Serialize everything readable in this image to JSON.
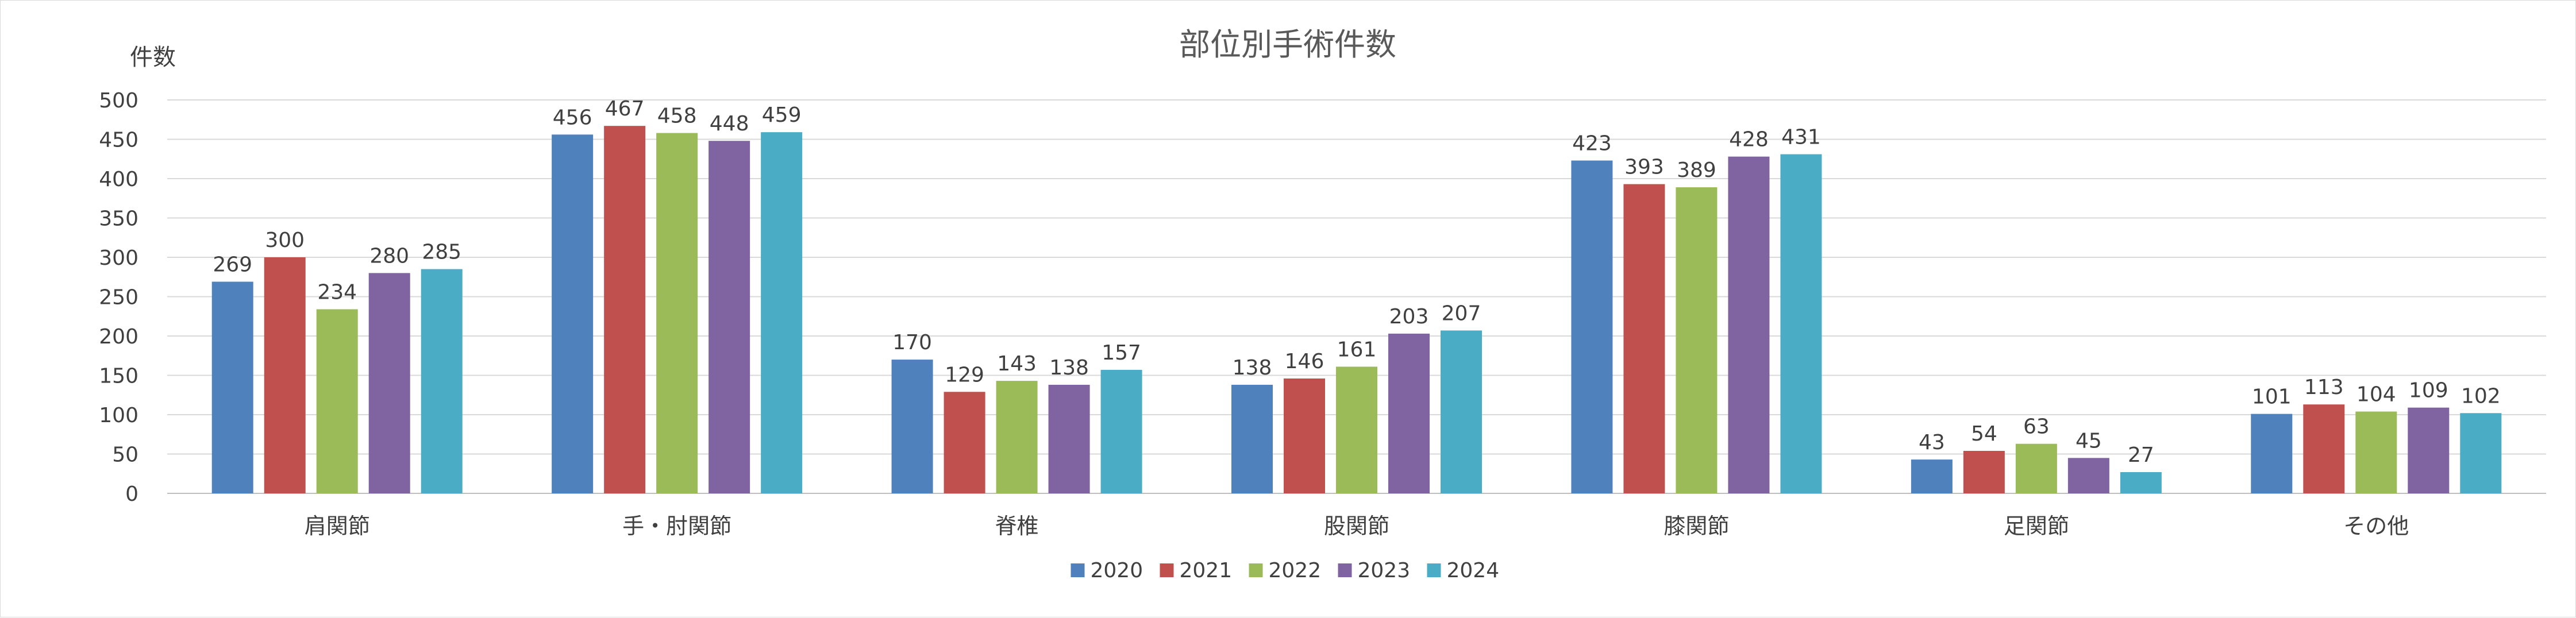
{
  "chart_data": {
    "type": "bar",
    "title": "部位別手術件数",
    "ylabel": "件数",
    "xlabel": "",
    "categories": [
      "肩関節",
      "手・肘関節",
      "脊椎",
      "股関節",
      "膝関節",
      "足関節",
      "その他"
    ],
    "series": [
      {
        "name": "2020",
        "color": "#4F81BD",
        "values": [
          269,
          456,
          170,
          138,
          423,
          43,
          101
        ]
      },
      {
        "name": "2021",
        "color": "#C0504D",
        "values": [
          300,
          467,
          129,
          146,
          393,
          54,
          113
        ]
      },
      {
        "name": "2022",
        "color": "#9BBB59",
        "values": [
          234,
          458,
          143,
          161,
          389,
          63,
          104
        ]
      },
      {
        "name": "2023",
        "color": "#8064A2",
        "values": [
          280,
          448,
          138,
          203,
          428,
          45,
          109
        ]
      },
      {
        "name": "2024",
        "color": "#4BACC6",
        "values": [
          285,
          459,
          157,
          207,
          431,
          27,
          102
        ]
      }
    ],
    "ylim": [
      0,
      500
    ],
    "yticks": [
      0,
      50,
      100,
      150,
      200,
      250,
      300,
      350,
      400,
      450,
      500
    ],
    "grid": true,
    "data_labels": true,
    "legend_position": "bottom"
  }
}
